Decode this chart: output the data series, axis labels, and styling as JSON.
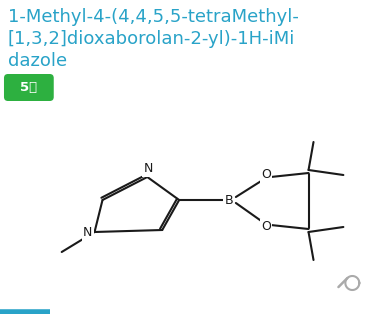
{
  "title_line1": "1-Methyl-4-(4,4,5,5-tetraMethyl-",
  "title_line2": "[1,3,2]dioxaborolan-2-yl)-1H-iMi",
  "title_line3": "dazole",
  "title_color": "#29a3c8",
  "badge_text": "5级",
  "badge_bg": "#2db040",
  "badge_text_color": "#ffffff",
  "bg_color": "#ffffff",
  "mol_color": "#1a1a1a",
  "search_icon_color": "#aaaaaa",
  "bottom_bar_color": "#29a3c8"
}
